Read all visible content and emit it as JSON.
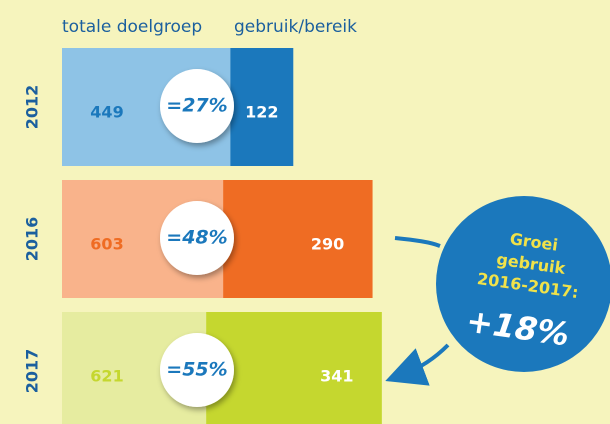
{
  "chart_data": {
    "type": "bar",
    "categories": [
      "2012",
      "2016",
      "2017"
    ],
    "series": [
      {
        "name": "totale doelgroep",
        "colors": [
          "#8ec3e6",
          "#f9b38b",
          "#e6eca0"
        ],
        "label_colors": [
          "#1b78bc",
          "#ef6c23",
          "#c5d72f"
        ],
        "values": [
          449,
          603,
          621
        ]
      },
      {
        "name": "gebruik/bereik",
        "colors": [
          "#1b78bc",
          "#ef6c23",
          "#c5d72f"
        ],
        "values": [
          122,
          290,
          341
        ]
      }
    ],
    "shares": [
      27,
      48,
      55
    ],
    "share_labels": [
      "=27%",
      "=48%",
      "=55%"
    ],
    "growth": {
      "text": [
        "Groei",
        "gebruik",
        "2016-2017:"
      ],
      "value": 18,
      "value_label": "+18%"
    }
  }
}
